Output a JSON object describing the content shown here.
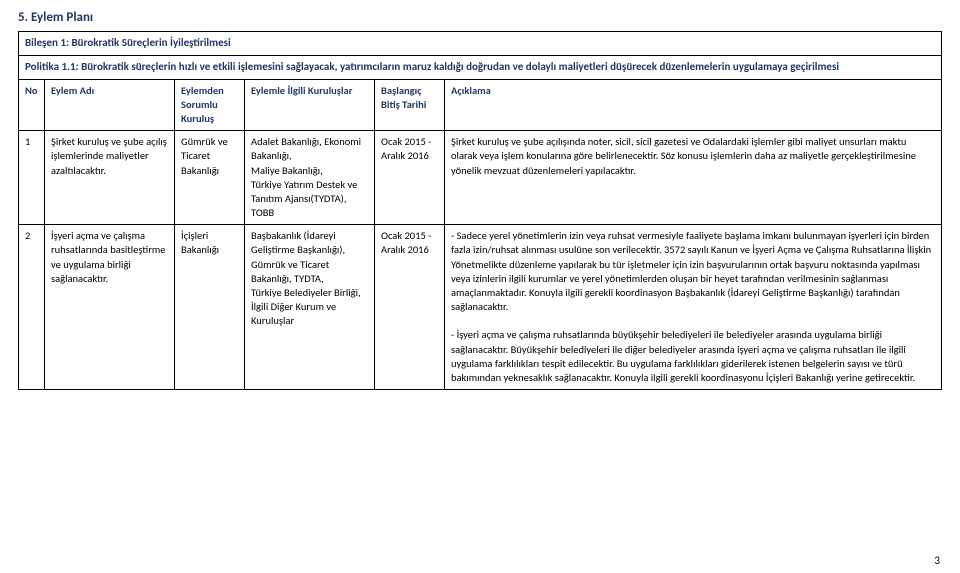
{
  "heading": "5.   Eylem Planı",
  "component_row": "Bileşen 1: Bürokratik Süreçlerin İyileştirilmesi",
  "policy_row": "Politika 1.1: Bürokratik süreçlerin hızlı ve etkili işlemesini sağlayacak, yatırımcıların maruz kaldığı doğrudan ve dolaylı maliyetleri düşürecek düzenlemelerin uygulamaya geçirilmesi",
  "columns": {
    "no": "No",
    "eylem_adi": "Eylem Adı",
    "eylemden": "Eylemden Sorumlu Kuruluş",
    "eylemle": "Eylemle İlgili Kuruluşlar",
    "baslangic": "Başlangıç Bitiş Tarihi",
    "aciklama": "Açıklama"
  },
  "rows": [
    {
      "no": "1",
      "eylem_adi": "Şirket kuruluş ve şube açılış işlemlerinde maliyetler azaltılacaktır.",
      "eylemden": "Gümrük ve Ticaret Bakanlığı",
      "eylemle": "Adalet Bakanlığı, Ekonomi Bakanlığı,\nMaliye Bakanlığı,\nTürkiye Yatırım Destek ve Tanıtım Ajansı(TYDTA), TOBB",
      "tarih": "Ocak 2015 - Aralık 2016",
      "aciklama": "Şirket kuruluş ve şube açılışında noter, sicil, sicil gazetesi ve Odalardaki işlemler gibi maliyet unsurları maktu olarak veya işlem konularına göre belirlenecektir. Söz konusu işlemlerin daha az maliyetle gerçekleştirilmesine yönelik mevzuat düzenlemeleri yapılacaktır."
    },
    {
      "no": "2",
      "eylem_adi": "İşyeri açma ve çalışma ruhsatlarında basitleştirme ve uygulama birliği sağlanacaktır.",
      "eylemden": "İçişleri Bakanlığı",
      "eylemle": "Başbakanlık (İdareyi Geliştirme Başkanlığı), Gümrük ve Ticaret Bakanlığı, TYDTA,\nTürkiye Belediyeler Birliği, İlgili Diğer Kurum ve Kuruluşlar",
      "tarih": "Ocak 2015  - Aralık 2016",
      "aciklama": "- Sadece yerel yönetimlerin izin veya ruhsat vermesiyle faaliyete başlama imkanı bulunmayan işyerleri için birden fazla izin/ruhsat alınması usulüne son verilecektir. 3572 sayılı Kanun ve İşyeri Açma ve Çalışma Ruhsatlarına İlişkin Yönetmelikte düzenleme yapılarak bu tür işletmeler için izin başvurularının ortak başvuru noktasında yapılması veya izinlerin ilgili kurumlar ve yerel yönetimlerden oluşan bir heyet tarafından verilmesinin sağlanması amaçlanmaktadır. Konuyla ilgili gerekli koordinasyon Başbakanlık (İdareyi Geliştirme Başkanlığı) tarafından sağlanacaktır.\n\n- İşyeri açma ve çalışma ruhsatlarında büyükşehir belediyeleri ile belediyeler arasında uygulama birliği sağlanacaktır. Büyükşehir belediyeleri ile diğer belediyeler arasında işyeri açma ve çalışma ruhsatları ile ilgili uygulama farklılıkları tespit edilecektir. Bu uygulama farklılıkları giderilerek istenen belgelerin sayısı ve türü bakımından yeknesaklık sağlanacaktır. Konuyla ilgili gerekli koordinasyonu İçişleri Bakanlığı yerine getirecektir."
    }
  ],
  "page_number": "3"
}
